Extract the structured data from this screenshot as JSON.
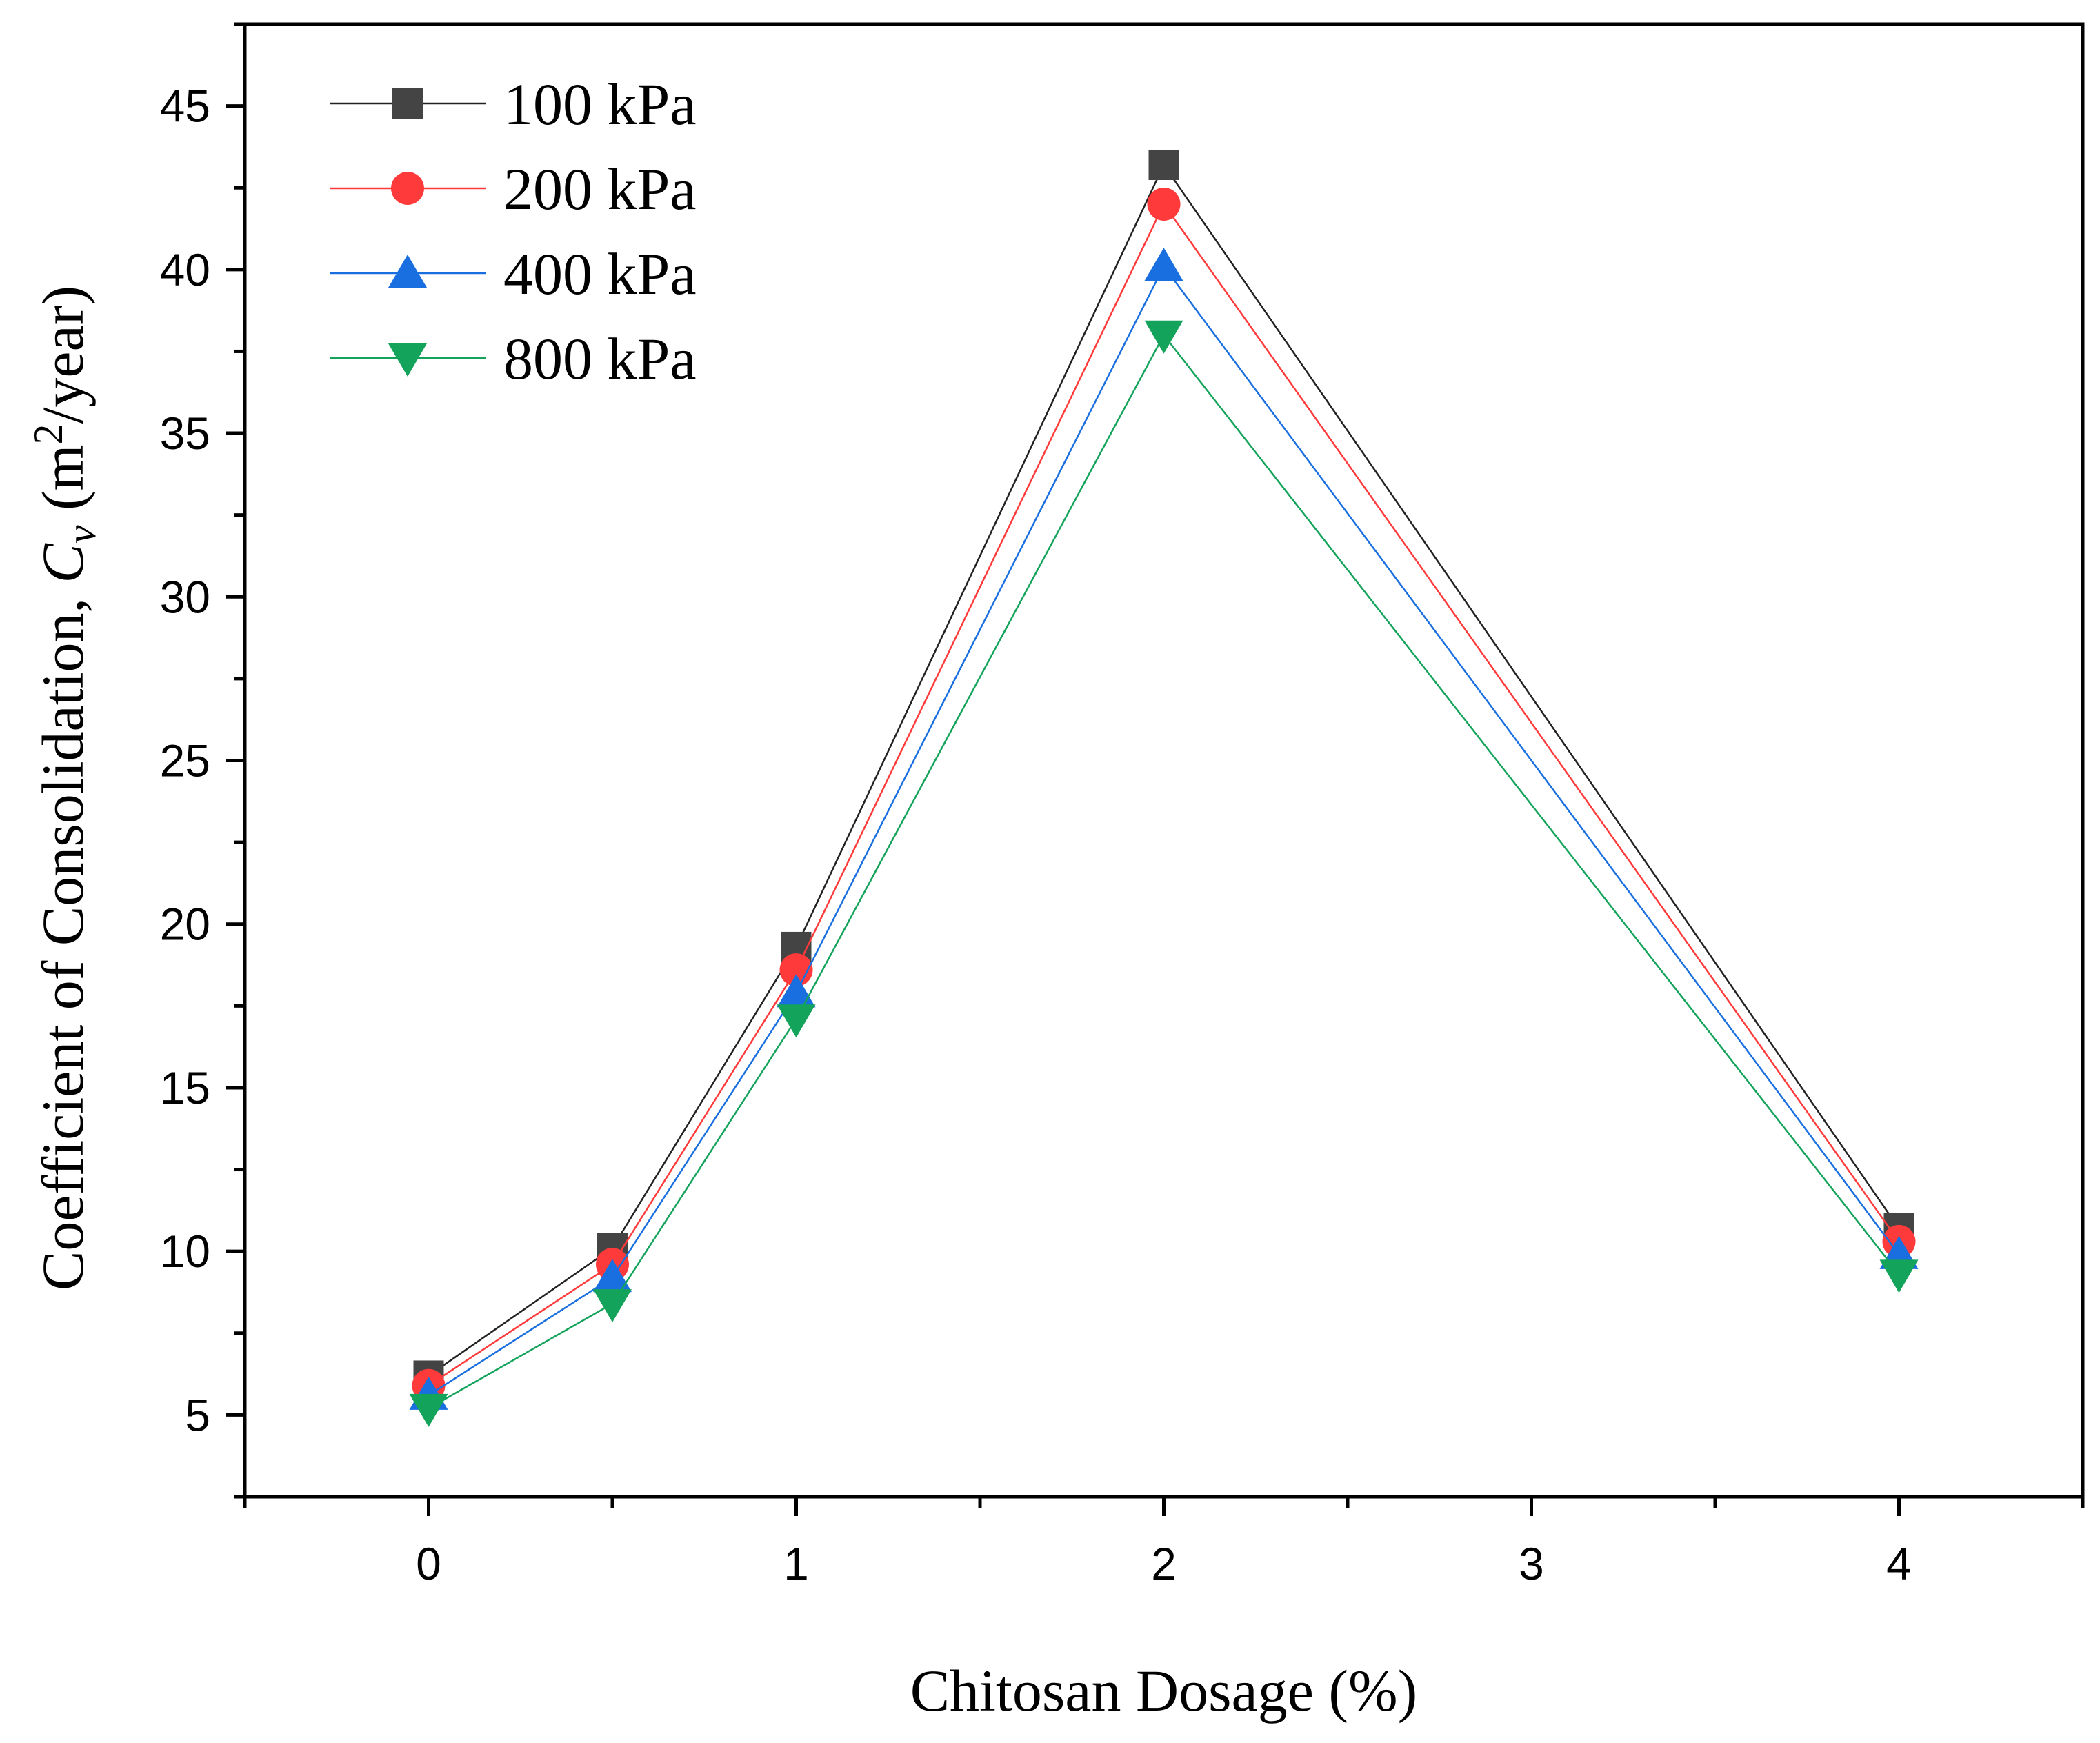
{
  "chart_data": {
    "type": "line",
    "xlabel": "Chitosan Dosage (%)",
    "ylabel": {
      "prefix": "Coefficient of Consolidation, ",
      "symbol": "C",
      "subscript": "v",
      "unit_open": " (m",
      "superscript": "2",
      "unit_close": "/year)"
    },
    "xlim": [
      -0.5,
      4.5
    ],
    "ylim": [
      2.5,
      47.5
    ],
    "x_major_ticks": [
      0,
      1,
      2,
      3,
      4
    ],
    "x_minor_ticks": [
      0.5,
      1.5,
      2.5,
      3.5
    ],
    "x_tick_labels": [
      "0",
      "1",
      "2",
      "3",
      "4"
    ],
    "y_major_ticks": [
      5,
      10,
      15,
      20,
      25,
      30,
      35,
      40,
      45
    ],
    "y_minor_ticks": [
      2.5,
      7.5,
      12.5,
      17.5,
      22.5,
      27.5,
      32.5,
      37.5,
      42.5,
      47.5
    ],
    "y_tick_labels": [
      "5",
      "10",
      "15",
      "20",
      "25",
      "30",
      "35",
      "40",
      "45"
    ],
    "grid": false,
    "legend": {
      "placement": "top-left"
    },
    "x": [
      0,
      0.5,
      1,
      2,
      4
    ],
    "series": [
      {
        "name": "100 kPa",
        "values": [
          6.2,
          10.1,
          19.3,
          43.2,
          10.7
        ],
        "color": "#444444",
        "line_color": "#222222",
        "marker": "square"
      },
      {
        "name": "200 kPa",
        "values": [
          5.9,
          9.6,
          18.6,
          42.0,
          10.3
        ],
        "color": "#ff3a3a",
        "line_color": "#ff3a3a",
        "marker": "circle"
      },
      {
        "name": "400 kPa",
        "values": [
          5.6,
          9.2,
          17.9,
          40.1,
          9.9
        ],
        "color": "#1a6fe0",
        "line_color": "#1a6fe0",
        "marker": "triangle-up"
      },
      {
        "name": "800 kPa",
        "values": [
          5.2,
          8.4,
          17.1,
          38.0,
          9.3
        ],
        "color": "#13a35a",
        "line_color": "#13a35a",
        "marker": "triangle-down"
      }
    ]
  }
}
